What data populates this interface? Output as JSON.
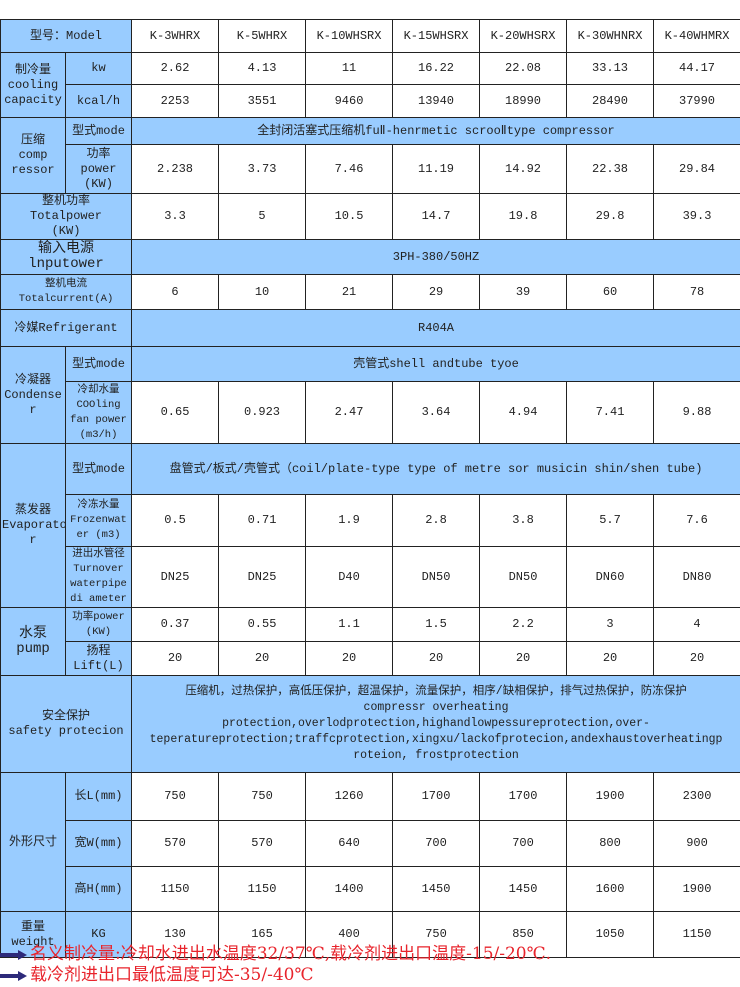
{
  "header": {
    "label": "型号：Model",
    "models": [
      "K-3WHRX",
      "K-5WHRX",
      "K-10WHSRX",
      "K-15WHSRX",
      "K-20WHSRX",
      "K-30WHNRX",
      "K-40WHMRX"
    ]
  },
  "cooling": {
    "label": "制冷量\ncooling\ncapacity",
    "kw": {
      "unit": "kw",
      "values": [
        "2.62",
        "4.13",
        "11",
        "16.22",
        "22.08",
        "33.13",
        "44.17"
      ]
    },
    "kcal": {
      "unit": "kcal/h",
      "values": [
        "2253",
        "3551",
        "9460",
        "13940",
        "18990",
        "28490",
        "37990"
      ]
    }
  },
  "compressor": {
    "label": "压缩\ncomp\nressor",
    "mode": {
      "label": "型式mode",
      "value": "全封闭活塞式压缩机fuⅡ-henrmetic scrooⅡtype compressor"
    },
    "power": {
      "label": "功率\npower\n(KW)",
      "values": [
        "2.238",
        "3.73",
        "7.46",
        "11.19",
        "14.92",
        "22.38",
        "29.84"
      ]
    }
  },
  "total_power": {
    "label": "整机功率\nTotalpower\n(KW)",
    "values": [
      "3.3",
      "5",
      "10.5",
      "14.7",
      "19.8",
      "29.8",
      "39.3"
    ]
  },
  "input_power": {
    "label": "输入电源lnputower",
    "value": "3PH-380/50HZ"
  },
  "total_current": {
    "label": "整机电流Totalcurrent(A)",
    "values": [
      "6",
      "10",
      "21",
      "29",
      "39",
      "60",
      "78"
    ]
  },
  "refrigerant": {
    "label": "冷媒Refrigerant",
    "value": "R404A"
  },
  "condenser": {
    "label": "冷凝器\nCondense\nr",
    "mode": {
      "label": "型式mode",
      "value": "壳管式shell andtube tyoe"
    },
    "water": {
      "label": "冷却水量\nCOOling\nfan power\n(m3/h)",
      "values": [
        "0.65",
        "0.923",
        "2.47",
        "3.64",
        "4.94",
        "7.41",
        "9.88"
      ]
    }
  },
  "evaporator": {
    "label": "蒸发器\nEvaporato\nr",
    "mode": {
      "label": "型式mode",
      "value": "盘管式/板式/壳管式（coil/plate-type type of metre sor musicin shin/shen tube)"
    },
    "frozen": {
      "label": "冷冻水量\nFrozenwat\ner (m3)",
      "values": [
        "0.5",
        "0.71",
        "1.9",
        "2.8",
        "3.8",
        "5.7",
        "7.6"
      ]
    },
    "pipe": {
      "label": "进出水管径\nTurnover\nwaterpipe\ndi ameter",
      "values": [
        "DN25",
        "DN25",
        "D40",
        "DN50",
        "DN50",
        "DN60",
        "DN80"
      ]
    }
  },
  "pump": {
    "label": "水泵\npump",
    "power": {
      "label": "功率power\n(KW)",
      "values": [
        "0.37",
        "0.55",
        "1.1",
        "1.5",
        "2.2",
        "3",
        "4"
      ]
    },
    "lift": {
      "label": "扬程\nLift(L)",
      "values": [
        "20",
        "20",
        "20",
        "20",
        "20",
        "20",
        "20"
      ]
    }
  },
  "safety": {
    "label": "安全保护\nsafety protecion",
    "text": "压缩机，过热保护，高低压保护，超温保护，流量保护，相序/缺相保护，排气过热保护，防冻保护\ncompressr overheating\nprotection,overlodprotection,highandlowpessureprotection,over-\nteperatureprotection;traffcprotection,xingxu/lackofprotecion,andexhaustoverheatingp\nroteion,     frostprotection"
  },
  "dimensions": {
    "label": "外形尺寸",
    "length": {
      "label": "长L(mm)",
      "values": [
        "750",
        "750",
        "1260",
        "1700",
        "1700",
        "1900",
        "2300"
      ]
    },
    "width": {
      "label": "宽W(mm)",
      "values": [
        "570",
        "570",
        "640",
        "700",
        "700",
        "800",
        "900"
      ]
    },
    "height": {
      "label": "高H(mm)",
      "values": [
        "1150",
        "1150",
        "1400",
        "1450",
        "1450",
        "1600",
        "1900"
      ]
    }
  },
  "weight": {
    "label": "重量\nweight",
    "unit": "KG",
    "values": [
      "130",
      "165",
      "400",
      "750",
      "850",
      "1050",
      "1150"
    ]
  },
  "notes": [
    "名义制冷量:冷却水进出水温度32/37℃,载冷剂进出口温度-15/-20℃.",
    "载冷剂进出口最低温度可达-35/-40℃"
  ],
  "colors": {
    "header_blue": "#99ccff",
    "note_red": "#e8242c",
    "arrow_navy": "#2d2a7a"
  }
}
